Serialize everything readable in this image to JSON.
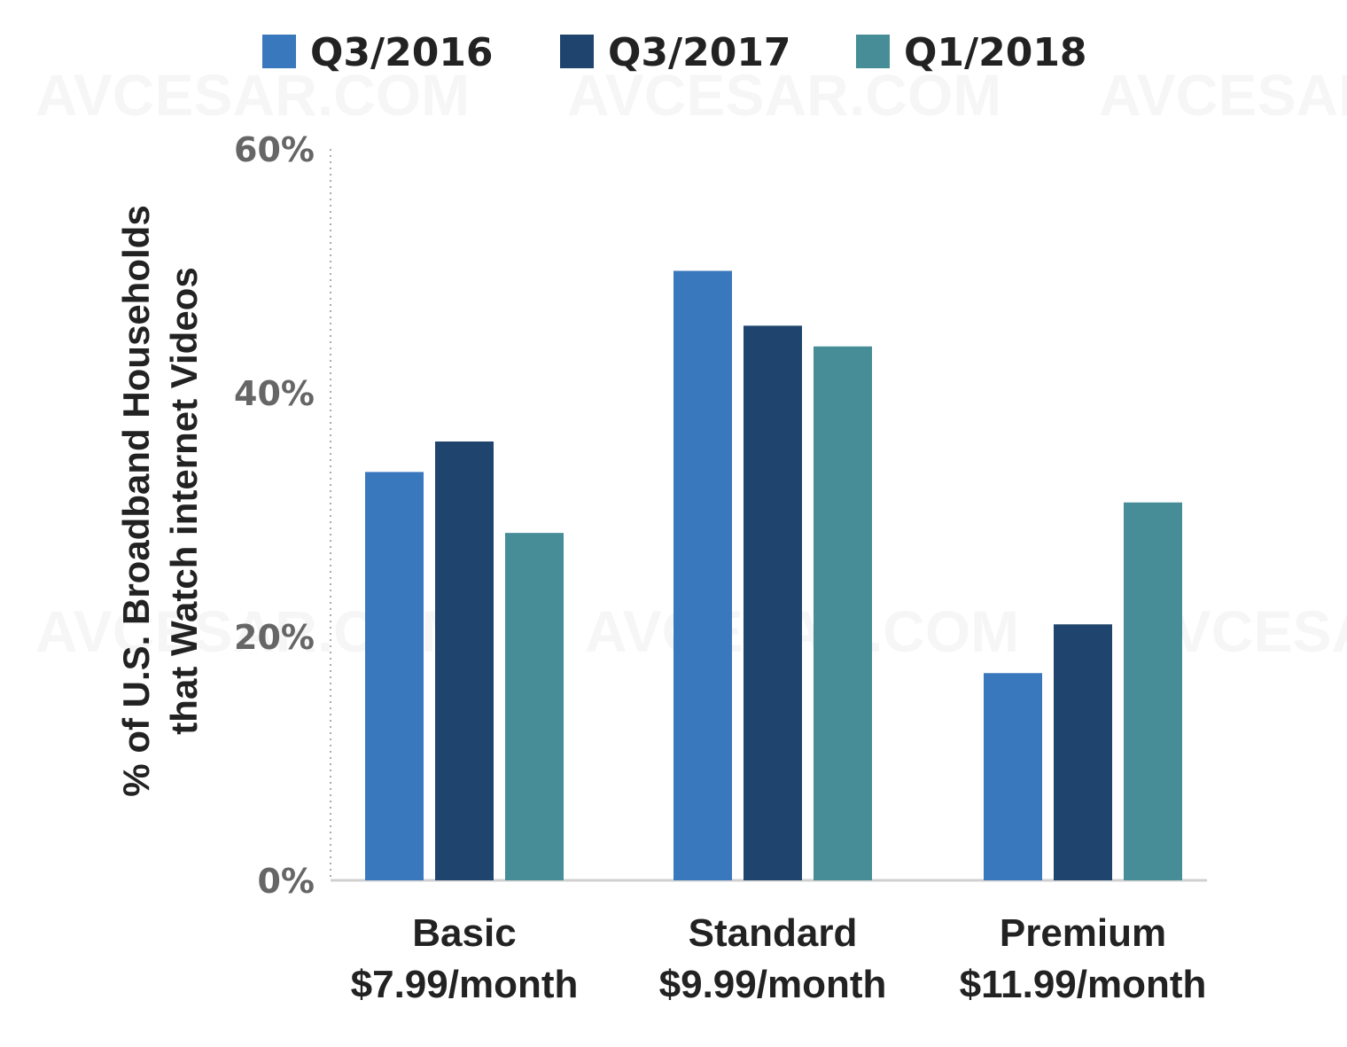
{
  "watermark": "AVCESAR.COM",
  "chart_data": {
    "type": "bar",
    "title": "",
    "categories": [
      [
        "Basic",
        "$7.99/month"
      ],
      [
        "Standard",
        "$9.99/month"
      ],
      [
        "Premium",
        "$11.99/month"
      ]
    ],
    "series": [
      {
        "name": "Q3/2016",
        "color": "#3a78bd",
        "values": [
          33.5,
          50.0,
          17.0
        ]
      },
      {
        "name": "Q3/2017",
        "color": "#1f456e",
        "values": [
          36.0,
          45.5,
          21.0
        ]
      },
      {
        "name": "Q1/2018",
        "color": "#468d98",
        "values": [
          28.5,
          43.8,
          31.0
        ]
      }
    ],
    "ylabel": [
      "% of U.S. Broadband Households",
      "that Watch internet Videos"
    ],
    "xlabel": "",
    "ylim": [
      0,
      60
    ],
    "yticks": [
      {
        "value": 0,
        "label": "0%"
      },
      {
        "value": 20,
        "label": "20%"
      },
      {
        "value": 40,
        "label": "40%"
      },
      {
        "value": 60,
        "label": "60%"
      }
    ],
    "grid": false,
    "legend_position": "top"
  }
}
